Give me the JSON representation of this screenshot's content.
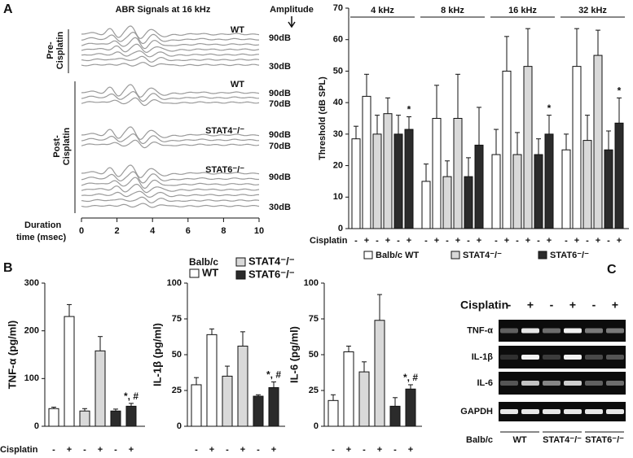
{
  "panel_labels": [
    "A",
    "B",
    "C"
  ],
  "abr": {
    "title": "ABR Signals at 16 kHz",
    "amplitude_label": "Amplitude",
    "sections": [
      {
        "label": [
          "Pre-",
          "Cisplatin"
        ],
        "traces": [
          {
            "name": "WT",
            "levels": [
              "90dB",
              "30dB"
            ]
          }
        ]
      },
      {
        "label": [
          "Post-",
          "Cisplatin"
        ],
        "traces": [
          {
            "name": "WT",
            "levels": [
              "90dB",
              "70dB"
            ]
          },
          {
            "name": "STAT4⁻/⁻",
            "levels": [
              "90dB",
              "70dB"
            ]
          },
          {
            "name": "STAT6⁻/⁻",
            "levels": [
              "90dB",
              "30dB"
            ]
          }
        ]
      }
    ],
    "xlabel": [
      "Duration",
      "time (msec)"
    ],
    "xlim": [
      0,
      10
    ],
    "xticks": [
      0,
      2,
      4,
      6,
      8,
      10
    ]
  },
  "panel_b_legend": {
    "title": "Balb/c",
    "entries": [
      "WT",
      "STAT4⁻/⁻",
      "STAT6⁻/⁻"
    ]
  },
  "gel": {
    "condition_label": "Cisplatin",
    "conditions": [
      "-",
      "+",
      "-",
      "+",
      "-",
      "+"
    ],
    "rows": [
      "TNF-α",
      "IL-1β",
      "IL-6",
      "GAPDH"
    ],
    "group_label": "Balb/c",
    "groups": [
      "WT",
      "STAT4⁻/⁻",
      "STAT6⁻/⁻"
    ]
  },
  "chart_data": [
    {
      "type": "bar",
      "ylabel": "Threshold (dB SPL)",
      "categories": [
        "4 kHz",
        "8 kHz",
        "16 kHz",
        "32 kHz"
      ],
      "condition_label": "Cisplatin",
      "conditions": [
        "-",
        "+"
      ],
      "series": [
        {
          "name": "Balb/c WT",
          "color": "#ffffff",
          "values": [
            [
              28.5,
              42
            ],
            [
              15,
              35
            ],
            [
              23.5,
              50
            ],
            [
              25,
              51.5
            ]
          ],
          "errors": [
            [
              4,
              7
            ],
            [
              5.5,
              10.5
            ],
            [
              8,
              11
            ],
            [
              5,
              12
            ]
          ]
        },
        {
          "name": "STAT4⁻/⁻",
          "color": "#d9d9d9",
          "values": [
            [
              30,
              36.5
            ],
            [
              16.5,
              35
            ],
            [
              23.5,
              51.5
            ],
            [
              28,
              55
            ]
          ],
          "errors": [
            [
              6,
              5
            ],
            [
              5,
              14
            ],
            [
              7,
              12
            ],
            [
              8,
              8
            ]
          ]
        },
        {
          "name": "STAT6⁻/⁻",
          "color": "#2b2b2b",
          "values": [
            [
              30,
              31.5
            ],
            [
              16.5,
              26.5
            ],
            [
              23.5,
              30
            ],
            [
              25,
              33.5
            ]
          ],
          "errors": [
            [
              6,
              4
            ],
            [
              6,
              12
            ],
            [
              5,
              6
            ],
            [
              6,
              8
            ]
          ],
          "annotations": [
            [
              null,
              "*"
            ],
            [
              null,
              null
            ],
            [
              null,
              "*"
            ],
            [
              null,
              "*"
            ]
          ]
        }
      ],
      "ylim": [
        0,
        70
      ],
      "yticks": [
        0,
        10,
        20,
        30,
        40,
        50,
        60,
        70
      ]
    },
    {
      "type": "bar",
      "ylabel": "TNF-α (pg/ml)",
      "condition_label": "Cisplatin",
      "conditions": [
        "-",
        "+"
      ],
      "series": [
        {
          "color": "#ffffff",
          "values": [
            37,
            230
          ],
          "errors": [
            3,
            25
          ]
        },
        {
          "color": "#d9d9d9",
          "values": [
            32,
            158
          ],
          "errors": [
            5,
            30
          ]
        },
        {
          "color": "#2b2b2b",
          "values": [
            32,
            42
          ],
          "errors": [
            4,
            6
          ],
          "annotations": [
            null,
            "*, #"
          ]
        }
      ],
      "ylim": [
        0,
        300
      ],
      "yticks": [
        0,
        100,
        200,
        300
      ]
    },
    {
      "type": "bar",
      "ylabel": "IL-1β (pg/ml)",
      "conditions": [
        "-",
        "+"
      ],
      "series": [
        {
          "color": "#ffffff",
          "values": [
            29,
            64
          ],
          "errors": [
            5,
            4
          ]
        },
        {
          "color": "#d9d9d9",
          "values": [
            35,
            56
          ],
          "errors": [
            7,
            10
          ]
        },
        {
          "color": "#2b2b2b",
          "values": [
            21,
            27
          ],
          "errors": [
            1,
            4
          ],
          "annotations": [
            null,
            "*, #"
          ]
        }
      ],
      "ylim": [
        0,
        100
      ],
      "yticks": [
        0,
        25,
        50,
        75,
        100
      ]
    },
    {
      "type": "bar",
      "ylabel": "IL-6 (pg/ml)",
      "conditions": [
        "-",
        "+"
      ],
      "series": [
        {
          "color": "#ffffff",
          "values": [
            18,
            52
          ],
          "errors": [
            4,
            4
          ]
        },
        {
          "color": "#d9d9d9",
          "values": [
            38,
            74
          ],
          "errors": [
            7,
            18
          ]
        },
        {
          "color": "#2b2b2b",
          "values": [
            14,
            26
          ],
          "errors": [
            6,
            3
          ],
          "annotations": [
            null,
            "*, #"
          ]
        }
      ],
      "ylim": [
        0,
        100
      ],
      "yticks": [
        0,
        25,
        50,
        75,
        100
      ]
    }
  ]
}
